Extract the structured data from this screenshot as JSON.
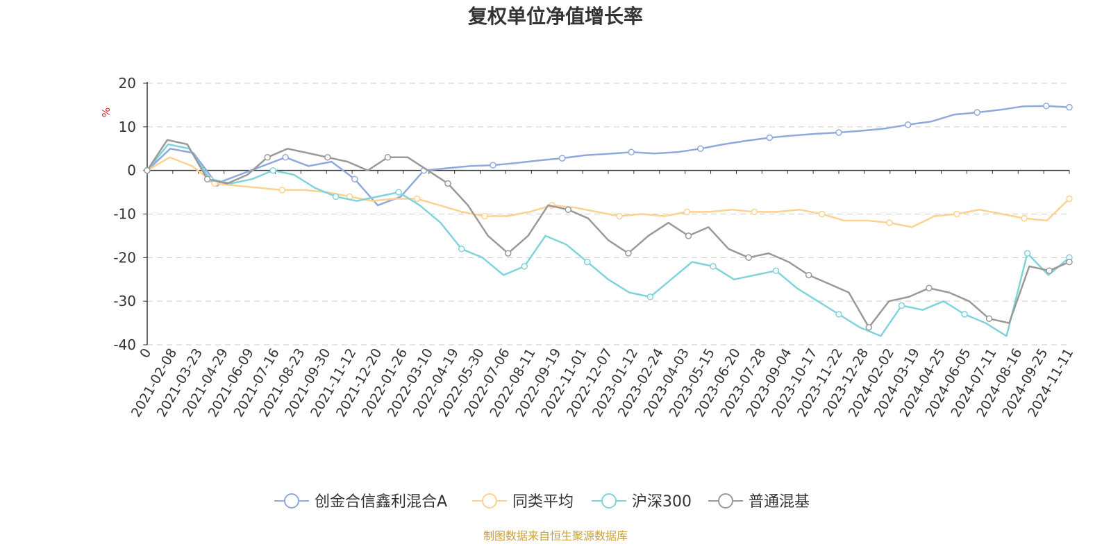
{
  "chart_data": {
    "type": "line",
    "title": "复权单位净值增长率",
    "ylabel": "%",
    "ylim": [
      -40,
      20
    ],
    "yticks": [
      20,
      10,
      0,
      -10,
      -20,
      -30,
      -40
    ],
    "grid": true,
    "legend_position": "bottom",
    "source": "制图数据来自恒生聚源数据库",
    "x_tick_labels": [
      "0",
      "2021-02-08",
      "2021-03-23",
      "2021-04-29",
      "2021-06-09",
      "2021-07-16",
      "2021-08-23",
      "2021-09-30",
      "2021-11-12",
      "2021-12-20",
      "2022-01-26",
      "2022-03-10",
      "2022-04-19",
      "2022-05-30",
      "2022-07-06",
      "2022-08-11",
      "2022-09-19",
      "2022-11-01",
      "2022-12-07",
      "2023-01-12",
      "2023-02-24",
      "2023-04-03",
      "2023-05-15",
      "2023-06-20",
      "2023-07-28",
      "2023-09-04",
      "2023-10-17",
      "2023-11-22",
      "2023-12-28",
      "2024-02-02",
      "2024-03-19",
      "2024-04-25",
      "2024-06-05",
      "2024-07-11",
      "2024-08-16",
      "2024-09-25",
      "2024-11-11"
    ],
    "series": [
      {
        "name": "创金合信鑫利混合A",
        "color": "#8fa9dc",
        "values": [
          0,
          5,
          4,
          -3,
          -1,
          1,
          3,
          1,
          2,
          -2,
          -8,
          -6,
          0,
          0.5,
          1,
          1.2,
          1.7,
          2.3,
          2.8,
          3.5,
          3.8,
          4.2,
          3.9,
          4.2,
          5,
          6,
          6.8,
          7.5,
          8,
          8.4,
          8.7,
          9.1,
          9.6,
          10.5,
          11.2,
          12.8,
          13.3,
          13.9,
          14.7,
          14.8,
          14.5
        ]
      },
      {
        "name": "同类平均",
        "color": "#fdd18f",
        "values": [
          0,
          3,
          1,
          -3,
          -3.5,
          -4,
          -4.5,
          -4.5,
          -5,
          -6,
          -7,
          -6.5,
          -6.5,
          -8,
          -9.5,
          -10.5,
          -10.5,
          -9.5,
          -8,
          -8.5,
          -9.5,
          -10.5,
          -10,
          -10.5,
          -9.5,
          -9.5,
          -9,
          -9.5,
          -9.5,
          -9,
          -10,
          -11.5,
          -11.5,
          -12,
          -13,
          -10.5,
          -10,
          -9,
          -10,
          -11,
          -11.5,
          -6.5
        ]
      },
      {
        "name": "沪深300",
        "color": "#7fd4d9",
        "values": [
          0,
          6,
          5,
          -2,
          -3,
          -2,
          0,
          -1,
          -4,
          -6,
          -7,
          -6,
          -5,
          -8,
          -12,
          -18,
          -20,
          -24,
          -22,
          -15,
          -17,
          -21,
          -25,
          -28,
          -29,
          -25,
          -21,
          -22,
          -25,
          -24,
          -23,
          -27,
          -30,
          -33,
          -36,
          -38,
          -31,
          -32,
          -30,
          -33,
          -35,
          -38,
          -19,
          -24,
          -20
        ]
      },
      {
        "name": "普通混基",
        "color": "#999999",
        "values": [
          0,
          7,
          6,
          -2,
          -3,
          -1,
          3,
          5,
          4,
          3,
          2,
          0,
          3,
          3,
          0,
          -3,
          -8,
          -15,
          -19,
          -15,
          -8,
          -9,
          -11,
          -16,
          -19,
          -15,
          -12,
          -15,
          -13,
          -18,
          -20,
          -19,
          -21,
          -24,
          -26,
          -28,
          -36,
          -30,
          -29,
          -27,
          -28,
          -30,
          -34,
          -35,
          -22,
          -23,
          -21
        ]
      }
    ]
  },
  "legend_icon": "circle-line-icon"
}
